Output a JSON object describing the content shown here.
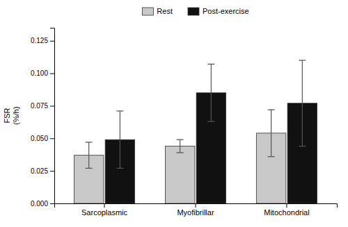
{
  "chart_data": {
    "type": "bar",
    "categories": [
      "Sarcoplasmic",
      "Myofibrillar",
      "Mitochondrial"
    ],
    "series": [
      {
        "name": "Rest",
        "color": "#c8c8c8",
        "values": [
          0.037,
          0.044,
          0.054
        ],
        "errors": [
          0.01,
          0.005,
          0.018
        ]
      },
      {
        "name": "Post-exercise",
        "color": "#111111",
        "values": [
          0.049,
          0.085,
          0.077
        ],
        "errors": [
          0.022,
          0.022,
          0.033
        ]
      }
    ],
    "ylabel": "FSR\n(%/h)",
    "ylim": [
      0.0,
      0.135
    ],
    "yticks": [
      {
        "value": 0.0,
        "label": "0.000"
      },
      {
        "value": 0.025,
        "label": "0.025"
      },
      {
        "value": 0.05,
        "label": "0.050"
      },
      {
        "value": 0.075,
        "label": "0.075"
      },
      {
        "value": 0.1,
        "label": "0.100"
      },
      {
        "value": 0.125,
        "label": "0.125"
      }
    ],
    "legend": "top"
  }
}
